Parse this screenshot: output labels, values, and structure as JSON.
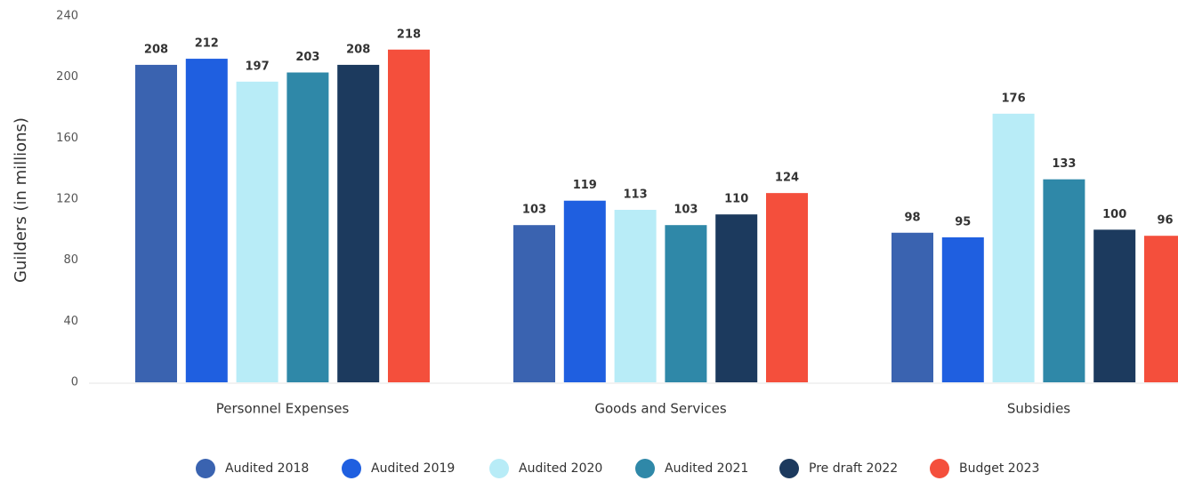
{
  "chart_data": {
    "type": "bar",
    "y_label": "Guilders (in millions)",
    "categories": [
      "Personnel Expenses",
      "Goods and Services",
      "Subsidies"
    ],
    "series": [
      {
        "name": "Audited 2018",
        "color": "#3a63b0",
        "values": [
          208,
          103,
          98
        ]
      },
      {
        "name": "Audited 2019",
        "color": "#1f5fe0",
        "values": [
          212,
          119,
          95
        ]
      },
      {
        "name": "Audited 2020",
        "color": "#b8ecf7",
        "values": [
          197,
          113,
          176
        ]
      },
      {
        "name": "Audited 2021",
        "color": "#2f88a8",
        "values": [
          203,
          103,
          133
        ]
      },
      {
        "name": "Pre draft 2022",
        "color": "#1c3a5e",
        "values": [
          208,
          110,
          100
        ]
      },
      {
        "name": "Budget 2023",
        "color": "#f44f3c",
        "values": [
          218,
          124,
          96
        ]
      }
    ],
    "ylim": [
      0,
      240
    ],
    "yticks": [
      0,
      40,
      80,
      120,
      160,
      200,
      240
    ],
    "legend": "bottom"
  }
}
